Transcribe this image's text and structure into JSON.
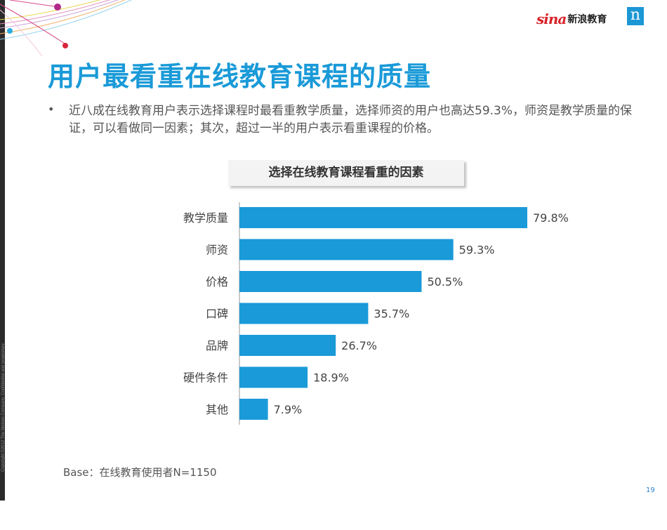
{
  "brand": {
    "sina": "sina",
    "edu": "新浪教育",
    "n_logo": "n"
  },
  "header": {
    "title": "用户最看重在线教育课程的质量"
  },
  "bullet": {
    "symbol": "•",
    "text": "近八成在线教育用户表示选择课程时最看重教学质量，选择师资的用户也高达59.3%，师资是教学质量的保证，可以看做同一因素；其次，超过一半的用户表示看重课程的价格。"
  },
  "chart_data": {
    "type": "bar",
    "orientation": "horizontal",
    "title": "选择在线教育课程看重的因素",
    "categories": [
      "教学质量",
      "师资",
      "价格",
      "口碑",
      "品牌",
      "硬件条件",
      "其他"
    ],
    "values": [
      79.8,
      59.3,
      50.5,
      35.7,
      26.7,
      18.9,
      7.9
    ],
    "value_labels": [
      "79.8%",
      "59.3%",
      "50.5%",
      "35.7%",
      "26.7%",
      "18.9%",
      "7.9%"
    ],
    "bar_color": "#1a9ad8",
    "xlim": [
      0,
      100
    ],
    "grid": false,
    "legend": "none"
  },
  "footer": {
    "base_note": "Base：在线教育使用者N=1150",
    "copyright": "Copyright ©2012 The Nielsen Company. Confidential and proprietary.",
    "page": "19"
  },
  "colors": {
    "accent": "#1a9ad8",
    "sina_red": "#d8232a",
    "sidebar": "#2b2b2b"
  }
}
